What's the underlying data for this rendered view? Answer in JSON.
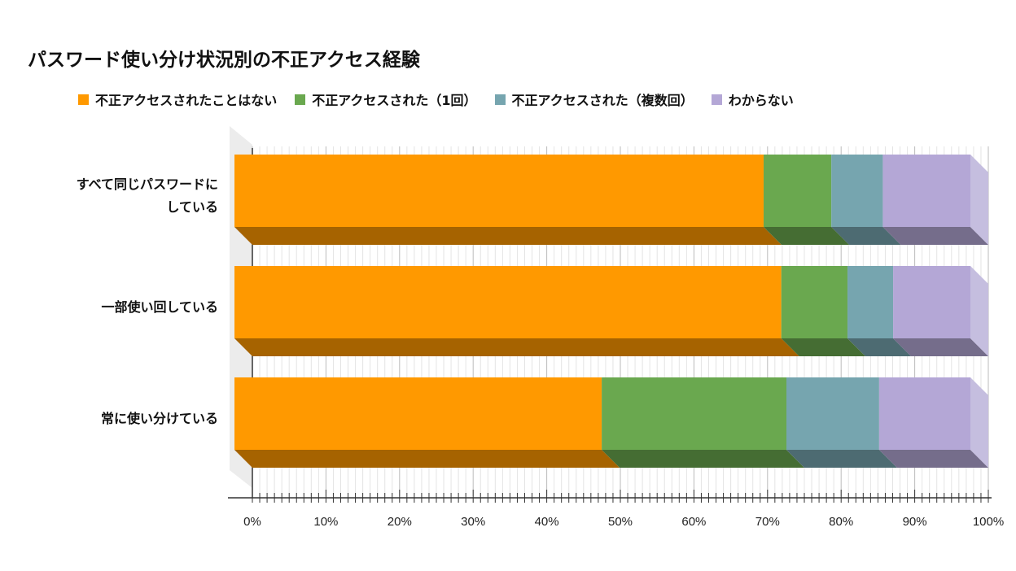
{
  "chart_data": {
    "type": "bar",
    "orientation": "horizontal",
    "stacked": true,
    "three_d": true,
    "title": "パスワード使い分け状況別の不正アクセス経験",
    "categories": [
      "すべて同じパスワードにしている",
      "一部使い回している",
      "常に使い分けている"
    ],
    "category_lines": [
      [
        "すべて同じパスワードに",
        "している"
      ],
      [
        "一部使い回している"
      ],
      [
        "常に使い分けている"
      ]
    ],
    "series": [
      {
        "name": "不正アクセスされたことはない",
        "color": "#FF9900",
        "values": [
          71.9,
          74.3,
          49.9
        ]
      },
      {
        "name": "不正アクセスされた（1回）",
        "color": "#6AA84F",
        "values": [
          9.2,
          9.0,
          25.1
        ]
      },
      {
        "name": "不正アクセスされた（複数回）",
        "color": "#76A5AF",
        "values": [
          7.0,
          6.2,
          12.6
        ]
      },
      {
        "name": "わからない",
        "color": "#B4A7D6",
        "values": [
          11.9,
          10.5,
          12.4
        ]
      }
    ],
    "xlim": [
      0,
      100
    ],
    "xticks": [
      "0%",
      "10%",
      "20%",
      "30%",
      "40%",
      "50%",
      "60%",
      "70%",
      "80%",
      "90%",
      "100%"
    ],
    "grid": true,
    "legend_position": "top"
  }
}
